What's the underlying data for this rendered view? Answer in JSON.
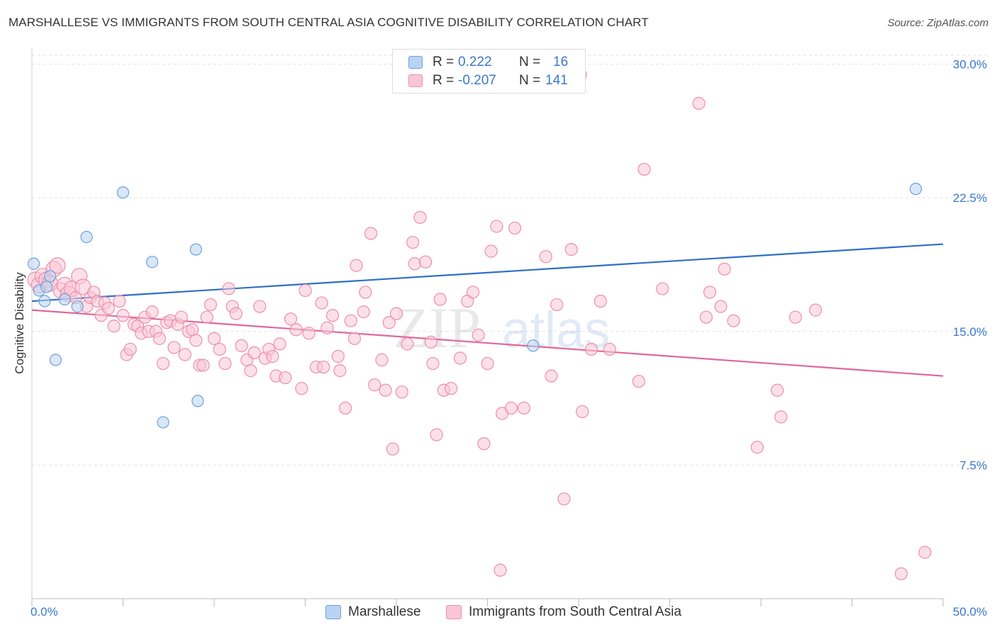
{
  "title": "MARSHALLESE VS IMMIGRANTS FROM SOUTH CENTRAL ASIA COGNITIVE DISABILITY CORRELATION CHART",
  "source": "Source: ZipAtlas.com",
  "watermark": {
    "zip": "ZIP",
    "atlas": "atlas"
  },
  "colors": {
    "blue_fill": "#b9d3f2",
    "blue_stroke": "#6f9fd8",
    "blue_line": "#2f6fc8",
    "pink_fill": "#f9c6d5",
    "pink_stroke": "#ec8faa",
    "pink_line": "#e0689a",
    "axis_label": "#3a78c9",
    "grid": "#e2e2e2"
  },
  "legend_top": [
    {
      "r_label": "R =",
      "r_value": "0.222",
      "n_label": "N =",
      "n_value": "16"
    },
    {
      "r_label": "R =",
      "r_value": "-0.207",
      "n_label": "N =",
      "n_value": "141"
    }
  ],
  "legend_bottom": [
    "Marshallese",
    "Immigrants from South Central Asia"
  ],
  "chart_data": {
    "type": "scatter",
    "title": "MARSHALLESE VS IMMIGRANTS FROM SOUTH CENTRAL ASIA COGNITIVE DISABILITY CORRELATION CHART",
    "xlabel": "",
    "ylabel": "Cognitive Disability",
    "xlim": [
      0,
      50
    ],
    "ylim": [
      0,
      30.5
    ],
    "x_tick_labels": [
      "0.0%",
      "50.0%"
    ],
    "y_ticks": [
      7.5,
      15.0,
      22.5,
      30.0
    ],
    "y_tick_labels": [
      "7.5%",
      "15.0%",
      "22.5%",
      "30.0%"
    ],
    "grid": true,
    "legend_position": "top-center",
    "series": [
      {
        "name": "Marshallese",
        "color": "#b9d3f2",
        "points": [
          [
            0.1,
            18.8
          ],
          [
            0.4,
            17.3
          ],
          [
            0.7,
            16.7
          ],
          [
            1.0,
            18.1
          ],
          [
            1.3,
            13.4
          ],
          [
            1.8,
            16.8
          ],
          [
            2.5,
            16.4
          ],
          [
            3.0,
            20.3
          ],
          [
            5.0,
            22.8
          ],
          [
            6.6,
            18.9
          ],
          [
            7.2,
            9.9
          ],
          [
            9.0,
            19.6
          ],
          [
            9.1,
            11.1
          ],
          [
            27.5,
            14.2
          ],
          [
            48.5,
            23.0
          ],
          [
            0.8,
            17.5
          ]
        ],
        "trend": [
          [
            0,
            16.7
          ],
          [
            50,
            19.9
          ]
        ]
      },
      {
        "name": "Immigrants from South Central Asia",
        "color": "#f9c6d5",
        "points": [
          [
            0.2,
            17.9
          ],
          [
            0.4,
            17.6
          ],
          [
            0.6,
            18.1
          ],
          [
            0.8,
            17.9
          ],
          [
            1.0,
            17.7
          ],
          [
            1.2,
            18.5
          ],
          [
            1.4,
            18.7
          ],
          [
            1.6,
            17.3
          ],
          [
            1.8,
            17.6
          ],
          [
            2.0,
            17.1
          ],
          [
            2.2,
            17.4
          ],
          [
            2.4,
            16.9
          ],
          [
            2.6,
            18.1
          ],
          [
            2.8,
            17.5
          ],
          [
            3.0,
            16.4
          ],
          [
            3.2,
            16.9
          ],
          [
            3.4,
            17.2
          ],
          [
            3.6,
            16.7
          ],
          [
            3.8,
            15.9
          ],
          [
            4.0,
            16.6
          ],
          [
            4.2,
            16.3
          ],
          [
            4.5,
            15.3
          ],
          [
            4.8,
            16.7
          ],
          [
            5.0,
            15.9
          ],
          [
            5.2,
            13.7
          ],
          [
            5.4,
            14.0
          ],
          [
            5.6,
            15.4
          ],
          [
            5.8,
            15.3
          ],
          [
            6.0,
            14.9
          ],
          [
            6.2,
            15.8
          ],
          [
            6.4,
            15.0
          ],
          [
            6.6,
            16.1
          ],
          [
            6.8,
            15.0
          ],
          [
            7.0,
            14.6
          ],
          [
            7.2,
            13.2
          ],
          [
            7.4,
            15.5
          ],
          [
            7.6,
            15.6
          ],
          [
            7.8,
            14.1
          ],
          [
            8.0,
            15.4
          ],
          [
            8.2,
            15.8
          ],
          [
            8.4,
            13.7
          ],
          [
            8.6,
            15.0
          ],
          [
            8.8,
            15.1
          ],
          [
            9.0,
            14.5
          ],
          [
            9.2,
            13.1
          ],
          [
            9.4,
            13.1
          ],
          [
            9.6,
            15.8
          ],
          [
            9.8,
            16.5
          ],
          [
            10.0,
            14.6
          ],
          [
            10.3,
            14.0
          ],
          [
            10.6,
            13.2
          ],
          [
            10.8,
            17.4
          ],
          [
            11.0,
            16.4
          ],
          [
            11.2,
            16.0
          ],
          [
            11.5,
            14.2
          ],
          [
            11.8,
            13.4
          ],
          [
            12.0,
            12.8
          ],
          [
            12.2,
            13.8
          ],
          [
            12.5,
            16.4
          ],
          [
            12.8,
            13.5
          ],
          [
            13.0,
            14.0
          ],
          [
            13.2,
            13.6
          ],
          [
            13.4,
            12.5
          ],
          [
            13.6,
            14.3
          ],
          [
            13.9,
            12.4
          ],
          [
            14.2,
            15.7
          ],
          [
            14.5,
            15.1
          ],
          [
            14.8,
            11.8
          ],
          [
            15.0,
            17.3
          ],
          [
            15.2,
            14.9
          ],
          [
            15.6,
            13.0
          ],
          [
            15.9,
            16.6
          ],
          [
            16.0,
            13.0
          ],
          [
            16.2,
            15.2
          ],
          [
            16.5,
            15.9
          ],
          [
            16.8,
            13.6
          ],
          [
            16.9,
            12.8
          ],
          [
            17.2,
            10.7
          ],
          [
            17.5,
            15.6
          ],
          [
            17.7,
            14.6
          ],
          [
            17.8,
            18.7
          ],
          [
            18.2,
            16.1
          ],
          [
            18.3,
            17.2
          ],
          [
            18.6,
            20.5
          ],
          [
            18.8,
            12.0
          ],
          [
            19.2,
            13.4
          ],
          [
            19.4,
            11.7
          ],
          [
            19.6,
            15.5
          ],
          [
            19.8,
            8.4
          ],
          [
            20.0,
            16.0
          ],
          [
            20.3,
            11.6
          ],
          [
            20.6,
            14.3
          ],
          [
            20.9,
            20.0
          ],
          [
            21.0,
            18.8
          ],
          [
            21.3,
            21.4
          ],
          [
            21.6,
            18.9
          ],
          [
            21.9,
            14.4
          ],
          [
            22.0,
            13.2
          ],
          [
            22.2,
            9.2
          ],
          [
            22.4,
            16.8
          ],
          [
            22.6,
            11.7
          ],
          [
            23.0,
            11.8
          ],
          [
            23.5,
            13.5
          ],
          [
            23.9,
            16.7
          ],
          [
            24.2,
            17.2
          ],
          [
            24.5,
            14.8
          ],
          [
            24.8,
            8.7
          ],
          [
            25.0,
            13.2
          ],
          [
            25.2,
            19.5
          ],
          [
            25.5,
            20.9
          ],
          [
            25.7,
            1.6
          ],
          [
            25.8,
            10.4
          ],
          [
            26.3,
            10.7
          ],
          [
            26.5,
            20.8
          ],
          [
            27.0,
            10.7
          ],
          [
            28.2,
            19.2
          ],
          [
            28.5,
            12.5
          ],
          [
            28.8,
            16.5
          ],
          [
            29.2,
            5.6
          ],
          [
            29.6,
            19.6
          ],
          [
            30.1,
            29.4
          ],
          [
            30.2,
            10.5
          ],
          [
            30.7,
            14.0
          ],
          [
            31.2,
            16.7
          ],
          [
            31.7,
            14.0
          ],
          [
            33.3,
            12.2
          ],
          [
            33.6,
            24.1
          ],
          [
            34.6,
            17.4
          ],
          [
            36.6,
            27.8
          ],
          [
            37.0,
            15.8
          ],
          [
            37.2,
            17.2
          ],
          [
            37.8,
            16.4
          ],
          [
            38.0,
            18.5
          ],
          [
            38.5,
            15.6
          ],
          [
            39.8,
            8.5
          ],
          [
            40.9,
            11.7
          ],
          [
            41.1,
            10.2
          ],
          [
            41.9,
            15.8
          ],
          [
            43.0,
            16.2
          ],
          [
            47.7,
            1.4
          ],
          [
            49.0,
            2.6
          ]
        ],
        "trend": [
          [
            0,
            16.2
          ],
          [
            50,
            12.5
          ]
        ]
      }
    ]
  }
}
